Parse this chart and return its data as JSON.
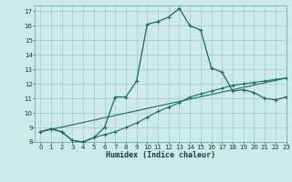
{
  "xlabel": "Humidex (Indice chaleur)",
  "bg_color": "#cdeaea",
  "grid_color": "#b0cccc",
  "line_color": "#1a6b5a",
  "xlim": [
    -0.5,
    23
  ],
  "ylim": [
    8,
    17.4
  ],
  "xticks": [
    0,
    1,
    2,
    3,
    4,
    5,
    6,
    7,
    8,
    9,
    10,
    11,
    12,
    13,
    14,
    15,
    16,
    17,
    18,
    19,
    20,
    21,
    22,
    23
  ],
  "yticks": [
    8,
    9,
    10,
    11,
    12,
    13,
    14,
    15,
    16,
    17
  ],
  "series1_x": [
    0,
    1,
    2,
    3,
    4,
    5,
    6,
    7,
    8,
    9,
    10,
    11,
    12,
    13,
    14,
    15,
    16,
    17,
    18,
    19,
    20,
    21,
    22,
    23
  ],
  "series1_y": [
    8.7,
    8.9,
    8.7,
    8.1,
    8.0,
    8.3,
    8.5,
    8.7,
    9.0,
    9.3,
    9.7,
    10.1,
    10.4,
    10.7,
    11.1,
    11.3,
    11.5,
    11.7,
    11.9,
    12.0,
    12.1,
    12.2,
    12.3,
    12.4
  ],
  "series2_x": [
    0,
    1,
    2,
    3,
    4,
    5,
    6,
    7,
    8,
    9,
    10,
    11,
    12,
    13,
    14,
    15,
    16,
    17,
    18,
    19,
    20,
    21,
    22,
    23
  ],
  "series2_y": [
    8.7,
    8.9,
    8.7,
    8.1,
    8.0,
    8.3,
    9.0,
    11.1,
    11.1,
    12.2,
    16.1,
    16.3,
    16.6,
    17.2,
    16.0,
    15.7,
    13.1,
    12.8,
    11.5,
    11.6,
    11.4,
    11.0,
    10.9,
    11.1
  ],
  "series3_x": [
    0,
    23
  ],
  "series3_y": [
    8.7,
    12.4
  ]
}
